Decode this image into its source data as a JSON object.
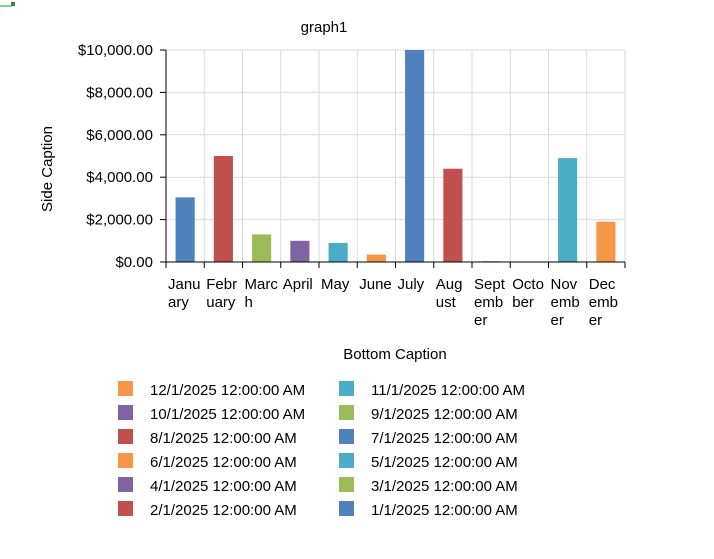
{
  "chart_data": {
    "type": "bar",
    "title": "graph1",
    "xlabel": "Bottom Caption",
    "ylabel": "Side Caption",
    "ylim": [
      0,
      10000
    ],
    "yticks": [
      0,
      2000,
      4000,
      6000,
      8000,
      10000
    ],
    "ytick_labels": [
      "$0.00",
      "$2,000.00",
      "$4,000.00",
      "$6,000.00",
      "$8,000.00",
      "$10,000.00"
    ],
    "grid": true,
    "legend_position": "bottom",
    "categories": [
      "January",
      "February",
      "March",
      "April",
      "May",
      "June",
      "July",
      "August",
      "September",
      "October",
      "November",
      "December"
    ],
    "category_label_lines": [
      [
        "Janu",
        "ary"
      ],
      [
        "Febr",
        "uary"
      ],
      [
        "Marc",
        "h"
      ],
      [
        "April"
      ],
      [
        "May"
      ],
      [
        "June"
      ],
      [
        "July"
      ],
      [
        "Aug",
        "ust"
      ],
      [
        "Sept",
        "emb",
        "er"
      ],
      [
        "Octo",
        "ber"
      ],
      [
        "Nov",
        "emb",
        "er"
      ],
      [
        "Dec",
        "emb",
        "er"
      ]
    ],
    "series": [
      {
        "name": "1/1/2025 12:00:00 AM",
        "category": "January",
        "value": 3050,
        "color": "#4f81bd"
      },
      {
        "name": "2/1/2025 12:00:00 AM",
        "category": "February",
        "value": 5000,
        "color": "#c0504d"
      },
      {
        "name": "3/1/2025 12:00:00 AM",
        "category": "March",
        "value": 1300,
        "color": "#9bbb59"
      },
      {
        "name": "4/1/2025 12:00:00 AM",
        "category": "April",
        "value": 1000,
        "color": "#8064a2"
      },
      {
        "name": "5/1/2025 12:00:00 AM",
        "category": "May",
        "value": 900,
        "color": "#4bacc6"
      },
      {
        "name": "6/1/2025 12:00:00 AM",
        "category": "June",
        "value": 350,
        "color": "#f79646"
      },
      {
        "name": "7/1/2025 12:00:00 AM",
        "category": "July",
        "value": 10000,
        "color": "#4f81bd"
      },
      {
        "name": "8/1/2025 12:00:00 AM",
        "category": "August",
        "value": 4400,
        "color": "#c0504d"
      },
      {
        "name": "9/1/2025 12:00:00 AM",
        "category": "September",
        "value": 40,
        "color": "#9bbb59"
      },
      {
        "name": "10/1/2025 12:00:00 AM",
        "category": "October",
        "value": 0,
        "color": "#8064a2"
      },
      {
        "name": "11/1/2025 12:00:00 AM",
        "category": "November",
        "value": 4900,
        "color": "#4bacc6"
      },
      {
        "name": "12/1/2025 12:00:00 AM",
        "category": "December",
        "value": 1900,
        "color": "#f79646"
      }
    ],
    "legend_order": [
      "12/1/2025 12:00:00 AM",
      "11/1/2025 12:00:00 AM",
      "10/1/2025 12:00:00 AM",
      "9/1/2025 12:00:00 AM",
      "8/1/2025 12:00:00 AM",
      "7/1/2025 12:00:00 AM",
      "6/1/2025 12:00:00 AM",
      "5/1/2025 12:00:00 AM",
      "4/1/2025 12:00:00 AM",
      "3/1/2025 12:00:00 AM",
      "2/1/2025 12:00:00 AM",
      "1/1/2025 12:00:00 AM"
    ]
  },
  "colors": {
    "axis": "#000000",
    "grid": "#d9d9d9",
    "corner_mark": "#2e8b2e"
  }
}
